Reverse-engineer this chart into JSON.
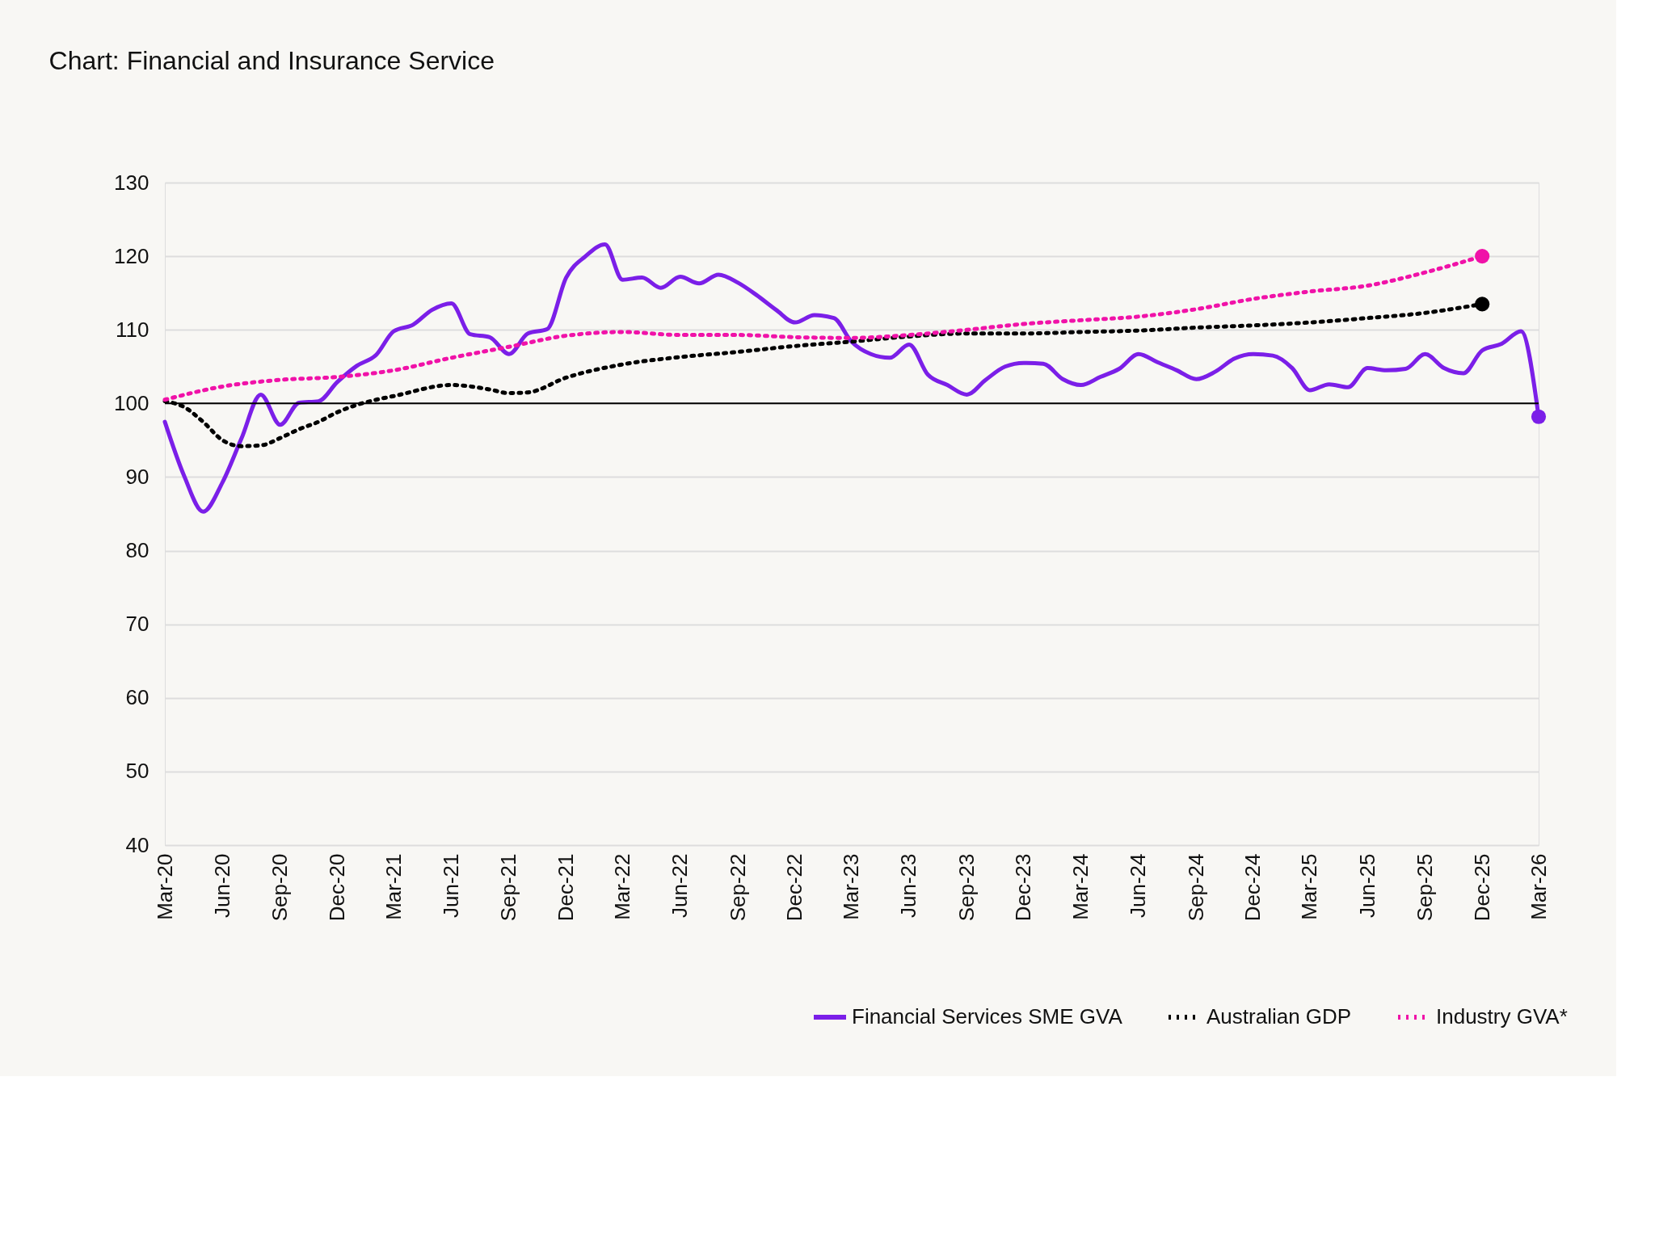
{
  "chart_data": {
    "type": "line",
    "title": "Chart: Financial and Insurance Service",
    "ylim": [
      40,
      130
    ],
    "yticks": [
      40,
      50,
      60,
      70,
      80,
      90,
      100,
      110,
      120,
      130
    ],
    "xlim": [
      "2020-03",
      "2026-03"
    ],
    "xticks": [
      {
        "value": "2020-03",
        "label": "Mar-20"
      },
      {
        "value": "2020-06",
        "label": "Jun-20"
      },
      {
        "value": "2020-09",
        "label": "Sep-20"
      },
      {
        "value": "2020-12",
        "label": "Dec-20"
      },
      {
        "value": "2021-03",
        "label": "Mar-21"
      },
      {
        "value": "2021-06",
        "label": "Jun-21"
      },
      {
        "value": "2021-09",
        "label": "Sep-21"
      },
      {
        "value": "2021-12",
        "label": "Dec-21"
      },
      {
        "value": "2022-03",
        "label": "Mar-22"
      },
      {
        "value": "2022-06",
        "label": "Jun-22"
      },
      {
        "value": "2022-09",
        "label": "Sep-22"
      },
      {
        "value": "2022-12",
        "label": "Dec-22"
      },
      {
        "value": "2023-03",
        "label": "Mar-23"
      },
      {
        "value": "2023-06",
        "label": "Jun-23"
      },
      {
        "value": "2023-09",
        "label": "Sep-23"
      },
      {
        "value": "2023-12",
        "label": "Dec-23"
      },
      {
        "value": "2024-03",
        "label": "Mar-24"
      },
      {
        "value": "2024-06",
        "label": "Jun-24"
      },
      {
        "value": "2024-09",
        "label": "Sep-24"
      },
      {
        "value": "2024-12",
        "label": "Dec-24"
      },
      {
        "value": "2025-03",
        "label": "Mar-25"
      },
      {
        "value": "2025-06",
        "label": "Jun-25"
      },
      {
        "value": "2025-09",
        "label": "Sep-25"
      },
      {
        "value": "2025-12",
        "label": "Dec-25"
      },
      {
        "value": "2026-03",
        "label": "Mar-26"
      }
    ],
    "grid": "y",
    "legend": "bottom right",
    "ref_lines": [
      {
        "axis": "y",
        "value": 100,
        "color": "#000000"
      }
    ],
    "series": [
      {
        "name": "Financial Services SME GVA",
        "color": "#7b1fe8",
        "line_style": "solid",
        "x": [
          "2020-03",
          "2020-04",
          "2020-05",
          "2020-06",
          "2020-07",
          "2020-08",
          "2020-09",
          "2020-10",
          "2020-11",
          "2020-12",
          "2021-01",
          "2021-02",
          "2021-03",
          "2021-04",
          "2021-05",
          "2021-06",
          "2021-07",
          "2021-08",
          "2021-09",
          "2021-10",
          "2021-11",
          "2021-12",
          "2022-01",
          "2022-02",
          "2022-03",
          "2022-04",
          "2022-05",
          "2022-06",
          "2022-07",
          "2022-08",
          "2022-09",
          "2022-10",
          "2022-11",
          "2022-12",
          "2023-01",
          "2023-02",
          "2023-03",
          "2023-04",
          "2023-05",
          "2023-06",
          "2023-07",
          "2023-08",
          "2023-09",
          "2023-10",
          "2023-11",
          "2023-12",
          "2024-01",
          "2024-02",
          "2024-03",
          "2024-04",
          "2024-05",
          "2024-06",
          "2024-07",
          "2024-08",
          "2024-09",
          "2024-10",
          "2024-11",
          "2024-12",
          "2025-01",
          "2025-02",
          "2025-03",
          "2025-04",
          "2025-05",
          "2025-06",
          "2025-07",
          "2025-08",
          "2025-09",
          "2025-10",
          "2025-11",
          "2025-12",
          "2026-01",
          "2026-02",
          "2026-03"
        ],
        "values": [
          97.5,
          90.1,
          85.3,
          89.3,
          95.2,
          101.2,
          97.1,
          100.1,
          100.3,
          102.9,
          105.1,
          106.6,
          109.8,
          110.7,
          112.7,
          113.6,
          109.4,
          109.0,
          106.7,
          109.5,
          110.1,
          117.1,
          120.0,
          121.6,
          116.8,
          117.1,
          115.7,
          117.2,
          116.3,
          117.5,
          116.4,
          114.7,
          112.7,
          111.0,
          112.0,
          111.6,
          108.4,
          106.7,
          106.2,
          108.0,
          103.9,
          102.5,
          101.2,
          103.2,
          105.0,
          105.5,
          105.4,
          103.3,
          102.5,
          103.6,
          104.7,
          106.7,
          105.6,
          104.5,
          103.3,
          104.3,
          106.1,
          106.7,
          106.5,
          104.8,
          101.8,
          102.6,
          102.2,
          104.8,
          104.5,
          104.7,
          106.7,
          104.8,
          104.1,
          107.2,
          108.1,
          109.8,
          98.2
        ]
      },
      {
        "name": "Australian GDP",
        "color": "#000000",
        "line_style": "dotted",
        "x": [
          "2020-03",
          "2020-04",
          "2020-05",
          "2020-06",
          "2020-07",
          "2020-08",
          "2020-09",
          "2020-10",
          "2020-11",
          "2020-12",
          "2021-01",
          "2021-02",
          "2021-03",
          "2021-06",
          "2021-08",
          "2021-09",
          "2021-10",
          "2021-12",
          "2022-03",
          "2022-06",
          "2022-09",
          "2022-12",
          "2023-03",
          "2023-06",
          "2023-09",
          "2023-12",
          "2024-03",
          "2024-06",
          "2024-09",
          "2024-12",
          "2025-03",
          "2025-06",
          "2025-09",
          "2025-12"
        ],
        "values": [
          100.3,
          99.5,
          97.5,
          95.0,
          94.2,
          94.3,
          95.3,
          96.5,
          97.5,
          98.8,
          99.8,
          100.5,
          101.0,
          102.5,
          101.9,
          101.4,
          101.5,
          103.5,
          105.3,
          106.3,
          107.0,
          107.8,
          108.4,
          109.1,
          109.5,
          109.5,
          109.7,
          109.9,
          110.3,
          110.6,
          111.0,
          111.6,
          112.3,
          113.5
        ]
      },
      {
        "name": "Industry GVA*",
        "color": "#f012a8",
        "line_style": "dotted",
        "x": [
          "2020-03",
          "2020-06",
          "2020-09",
          "2020-12",
          "2021-03",
          "2021-06",
          "2021-09",
          "2021-12",
          "2022-03",
          "2022-06",
          "2022-09",
          "2022-12",
          "2023-03",
          "2023-06",
          "2023-09",
          "2023-12",
          "2024-03",
          "2024-06",
          "2024-09",
          "2024-12",
          "2025-03",
          "2025-06",
          "2025-09",
          "2025-12"
        ],
        "values": [
          100.5,
          102.3,
          103.2,
          103.6,
          104.5,
          106.2,
          107.7,
          109.2,
          109.7,
          109.3,
          109.3,
          109.0,
          108.9,
          109.3,
          110.0,
          110.8,
          111.3,
          111.8,
          112.8,
          114.2,
          115.2,
          116.0,
          117.8,
          120.0
        ]
      }
    ]
  }
}
